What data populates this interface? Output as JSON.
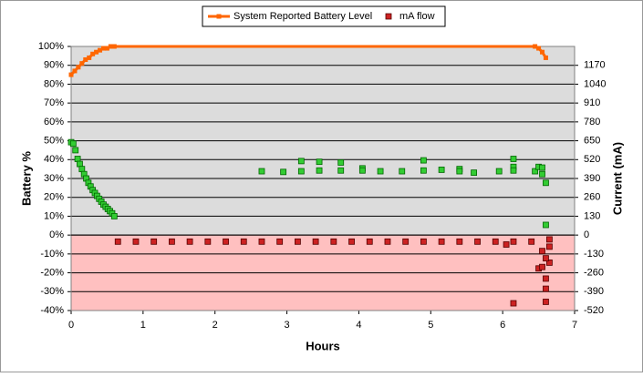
{
  "chart_data": {
    "type": "combo",
    "x_label": "Hours",
    "y_label": "Battery %",
    "y2_label": "Current (mA)",
    "xlim": [
      0,
      7
    ],
    "xticks": [
      0,
      1,
      2,
      3,
      4,
      5,
      6,
      7
    ],
    "ylim": [
      -40,
      100
    ],
    "yticks": [
      {
        "value": -40,
        "label": "-40%"
      },
      {
        "value": -30,
        "label": "-30%"
      },
      {
        "value": -20,
        "label": "-20%"
      },
      {
        "value": -10,
        "label": "-10%"
      },
      {
        "value": 0,
        "label": "0%"
      },
      {
        "value": 10,
        "label": "10%"
      },
      {
        "value": 20,
        "label": "20%"
      },
      {
        "value": 30,
        "label": "30%"
      },
      {
        "value": 40,
        "label": "40%"
      },
      {
        "value": 50,
        "label": "50%"
      },
      {
        "value": 60,
        "label": "60%"
      },
      {
        "value": 70,
        "label": "70%"
      },
      {
        "value": 80,
        "label": "80%"
      },
      {
        "value": 90,
        "label": "90%"
      },
      {
        "value": 100,
        "label": "100%"
      }
    ],
    "y2lim": [
      -520,
      1300
    ],
    "y2ticks": [
      -520,
      -390,
      -260,
      -130,
      0,
      130,
      260,
      390,
      520,
      650,
      780,
      910,
      1040,
      1170
    ],
    "grid": true,
    "legend": "top",
    "background_positive": "#dcdcdc",
    "background_negative": "#ffc0c0",
    "series": [
      {
        "name": "System Reported Battery Level",
        "type": "line",
        "color": "#ff6600",
        "x": [
          0,
          0.05,
          0.1,
          0.15,
          0.2,
          0.25,
          0.3,
          0.35,
          0.4,
          0.45,
          0.5,
          0.55,
          0.6,
          6.45,
          6.5,
          6.55,
          6.6
        ],
        "values": [
          85,
          87,
          89,
          91,
          93,
          94,
          96,
          97,
          98,
          99,
          99,
          100,
          100,
          100,
          99,
          97,
          94
        ]
      },
      {
        "name": "mA flow",
        "type": "scatter",
        "axis": "y2",
        "color": "#cc2222",
        "positive_color": "#33cc33",
        "x": [
          0,
          0.03,
          0.06,
          0.09,
          0.12,
          0.15,
          0.18,
          0.21,
          0.24,
          0.27,
          0.3,
          0.33,
          0.36,
          0.39,
          0.42,
          0.45,
          0.48,
          0.51,
          0.54,
          0.57,
          0.6,
          0.65,
          0.9,
          1.15,
          1.4,
          1.65,
          1.9,
          2.15,
          2.4,
          2.65,
          2.9,
          3.15,
          3.4,
          3.65,
          3.9,
          4.15,
          4.4,
          4.65,
          4.9,
          5.15,
          5.4,
          5.65,
          5.9,
          6.15,
          6.4,
          2.65,
          2.95,
          3.2,
          3.2,
          3.45,
          3.45,
          3.75,
          3.75,
          4.05,
          4.05,
          4.3,
          4.6,
          4.9,
          4.9,
          5.15,
          5.4,
          5.4,
          5.6,
          5.95,
          6.15,
          6.15,
          6.15,
          6.45,
          6.5,
          6.55,
          6.55,
          6.6,
          6.6,
          6.05,
          6.15,
          6.5,
          6.55,
          6.55,
          6.6,
          6.6,
          6.6,
          6.65,
          6.65,
          6.65,
          6.6
        ],
        "values": [
          640,
          630,
          585,
          525,
          490,
          455,
          420,
          390,
          360,
          335,
          310,
          290,
          270,
          250,
          230,
          210,
          195,
          180,
          165,
          150,
          130,
          -45,
          -45,
          -45,
          -45,
          -45,
          -45,
          -45,
          -45,
          -45,
          -45,
          -45,
          -45,
          -45,
          -45,
          -45,
          -45,
          -45,
          -45,
          -45,
          -45,
          -45,
          -45,
          -45,
          -45,
          440,
          435,
          510,
          440,
          505,
          445,
          500,
          445,
          460,
          445,
          440,
          440,
          515,
          445,
          450,
          455,
          440,
          430,
          440,
          525,
          470,
          445,
          440,
          470,
          420,
          465,
          360,
          70,
          -65,
          -470,
          -230,
          -110,
          -220,
          -300,
          -370,
          -460,
          -190,
          -80,
          -30,
          -160
        ]
      }
    ]
  }
}
